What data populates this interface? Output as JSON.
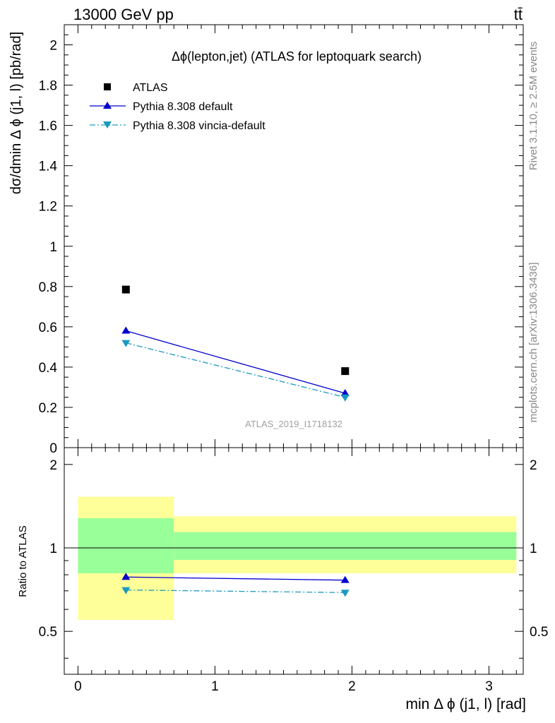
{
  "header": {
    "energy": "13000 GeV pp",
    "process": "tt̄"
  },
  "side_labels": {
    "rivet": "Rivet 3.1.10, ≥ 2.5M events",
    "mcplots": "mcplots.cern.ch [arXiv:1306.3436]"
  },
  "watermark": "ATLAS_2019_I1718132",
  "chart_data": [
    {
      "type": "scatter",
      "title": "Δϕ(lepton,jet) (ATLAS for leptoquark search)",
      "ylabel": "dσ/dmin Δ ϕ (j1, l) [pb/rad]",
      "xlim": [
        -0.1,
        3.25
      ],
      "ylim": [
        0,
        2.1
      ],
      "yticks": [
        "0",
        "0.2",
        "0.4",
        "0.6",
        "0.8",
        "1",
        "1.2",
        "1.4",
        "1.6",
        "1.8",
        "2"
      ],
      "legend_position": "top-left",
      "series": [
        {
          "name": "ATLAS",
          "x": [
            0.35,
            1.95
          ],
          "y": [
            0.785,
            0.38
          ],
          "color": "#000000",
          "marker": "square"
        },
        {
          "name": "Pythia 8.308 default",
          "x": [
            0.35,
            1.95
          ],
          "y": [
            0.58,
            0.27
          ],
          "color": "#0000cc",
          "marker": "triangle-up",
          "line": "solid"
        },
        {
          "name": "Pythia 8.308 vincia-default",
          "x": [
            0.35,
            1.95
          ],
          "y": [
            0.52,
            0.25
          ],
          "color": "#1a9ac0",
          "marker": "triangle-down",
          "line": "dashdot"
        }
      ]
    },
    {
      "type": "line",
      "ylabel": "Ratio to ATLAS",
      "xlabel": "min Δ ϕ (j1, l) [rad]",
      "xlim": [
        -0.1,
        3.25
      ],
      "ylim": [
        0.35,
        2.3
      ],
      "xticks": [
        "0",
        "1",
        "2",
        "3"
      ],
      "yticks": [
        "0.5",
        "1",
        "2"
      ],
      "bands": [
        {
          "x_from": 0.0,
          "x_to": 0.7,
          "inner": [
            0.81,
            1.28
          ],
          "outer": [
            0.55,
            1.53
          ]
        },
        {
          "x_from": 0.7,
          "x_to": 3.2,
          "inner": [
            0.905,
            1.14
          ],
          "outer": [
            0.81,
            1.3
          ]
        }
      ],
      "series": [
        {
          "name": "Pythia 8.308 default",
          "x": [
            0.35,
            1.95
          ],
          "y": [
            0.785,
            0.765
          ],
          "color": "#0000cc",
          "marker": "triangle-up",
          "line": "solid"
        },
        {
          "name": "Pythia 8.308 vincia-default",
          "x": [
            0.35,
            1.95
          ],
          "y": [
            0.705,
            0.69
          ],
          "color": "#1a9ac0",
          "marker": "triangle-down",
          "line": "dashdot"
        }
      ]
    }
  ]
}
